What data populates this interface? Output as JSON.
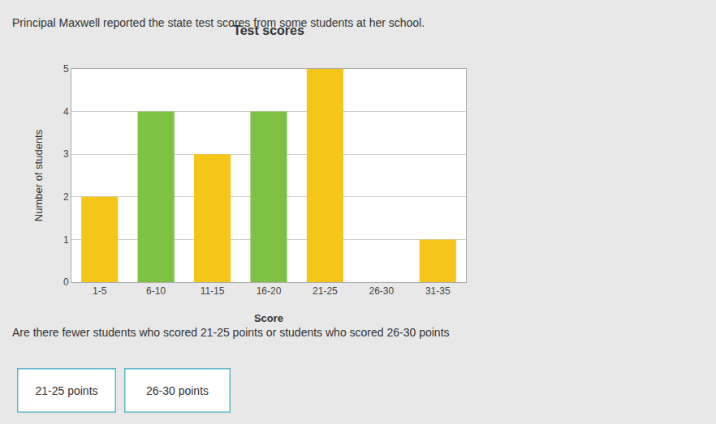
{
  "chart_data": {
    "type": "bar",
    "title": "Test scores",
    "subtitle": "Principal Maxwell reported the state test scores from some students at her school.",
    "xlabel": "Score",
    "ylabel": "Number of students",
    "categories": [
      "1-5",
      "6-10",
      "11-15",
      "16-20",
      "21-25",
      "26-30",
      "31-35"
    ],
    "values": [
      2,
      4,
      3,
      4,
      5,
      0,
      1
    ],
    "colors": [
      "#f5c518",
      "#7dc242",
      "#f5c518",
      "#7dc242",
      "#f5c518",
      "#f5c518",
      "#f5c518"
    ],
    "ylim": [
      0,
      5
    ],
    "yticks": [
      0,
      1,
      2,
      3,
      4,
      5
    ],
    "grid": true,
    "annotations": [
      "Are there fewer students who scored 21-25 points or students who scored 26-30 points",
      "21-25 points",
      "26-30 points"
    ]
  }
}
